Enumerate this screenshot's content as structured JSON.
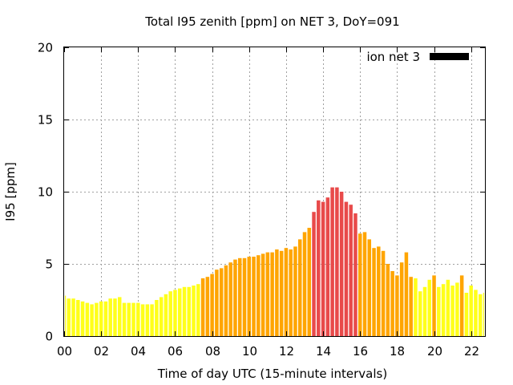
{
  "chart_data": {
    "type": "bar",
    "title": "Total I95 zenith [ppm] on NET 3, DoY=091",
    "xlabel": "Time of day UTC (15-minute intervals)",
    "ylabel": "I95 [ppm]",
    "xlim": [
      0,
      22.75
    ],
    "ylim": [
      0,
      20
    ],
    "x_ticks": [
      "00",
      "02",
      "04",
      "06",
      "08",
      "10",
      "12",
      "14",
      "16",
      "18",
      "20",
      "22"
    ],
    "y_ticks": [
      "0",
      "5",
      "10",
      "15",
      "20"
    ],
    "grid": true,
    "legend": {
      "placement": "top-right",
      "label": "ion net 3",
      "color": "#000000"
    },
    "bar_interval_hours": 0.25,
    "colors": {
      "low": "#ffff1a",
      "mid": "#ffa500",
      "high": "#e84a4a"
    },
    "series": [
      {
        "values": [
          2.8,
          2.6,
          2.6,
          2.5,
          2.4,
          2.3,
          2.2,
          2.3,
          2.4,
          2.4,
          2.6,
          2.6,
          2.7,
          2.3,
          2.3,
          2.3,
          2.3,
          2.2,
          2.2,
          2.2,
          2.5,
          2.7,
          2.9,
          3.1,
          3.2,
          3.3,
          3.4,
          3.4,
          3.5,
          3.6,
          4.0,
          4.1,
          4.3,
          4.6,
          4.7,
          4.9,
          5.1,
          5.3,
          5.4,
          5.4,
          5.5,
          5.5,
          5.6,
          5.7,
          5.8,
          5.8,
          6.0,
          5.9,
          6.1,
          6.0,
          6.2,
          6.7,
          7.2,
          7.5,
          8.6,
          9.4,
          9.3,
          9.6,
          10.3,
          10.3,
          10.0,
          9.3,
          9.1,
          8.5,
          7.1,
          7.2,
          6.7,
          6.1,
          6.2,
          5.9,
          5.0,
          4.5,
          4.2,
          5.1,
          5.8,
          4.1,
          4.0,
          3.1,
          3.4,
          3.9,
          4.2,
          3.4,
          3.6,
          3.9,
          3.5,
          3.7,
          4.2,
          3.0,
          3.5,
          3.2,
          2.9,
          3.0
        ],
        "levels": [
          "low",
          "low",
          "low",
          "low",
          "low",
          "low",
          "low",
          "low",
          "low",
          "low",
          "low",
          "low",
          "low",
          "low",
          "low",
          "low",
          "low",
          "low",
          "low",
          "low",
          "low",
          "low",
          "low",
          "low",
          "low",
          "low",
          "low",
          "low",
          "low",
          "low",
          "mid",
          "mid",
          "mid",
          "mid",
          "mid",
          "mid",
          "mid",
          "mid",
          "mid",
          "mid",
          "mid",
          "mid",
          "mid",
          "mid",
          "mid",
          "mid",
          "mid",
          "mid",
          "mid",
          "mid",
          "mid",
          "mid",
          "mid",
          "mid",
          "high",
          "high",
          "high",
          "high",
          "high",
          "high",
          "high",
          "high",
          "high",
          "high",
          "mid",
          "mid",
          "mid",
          "mid",
          "mid",
          "mid",
          "mid",
          "mid",
          "mid",
          "mid",
          "mid",
          "mid",
          "low",
          "low",
          "low",
          "low",
          "mid",
          "low",
          "low",
          "low",
          "low",
          "low",
          "mid",
          "low",
          "low",
          "low",
          "low",
          "low"
        ]
      }
    ]
  }
}
